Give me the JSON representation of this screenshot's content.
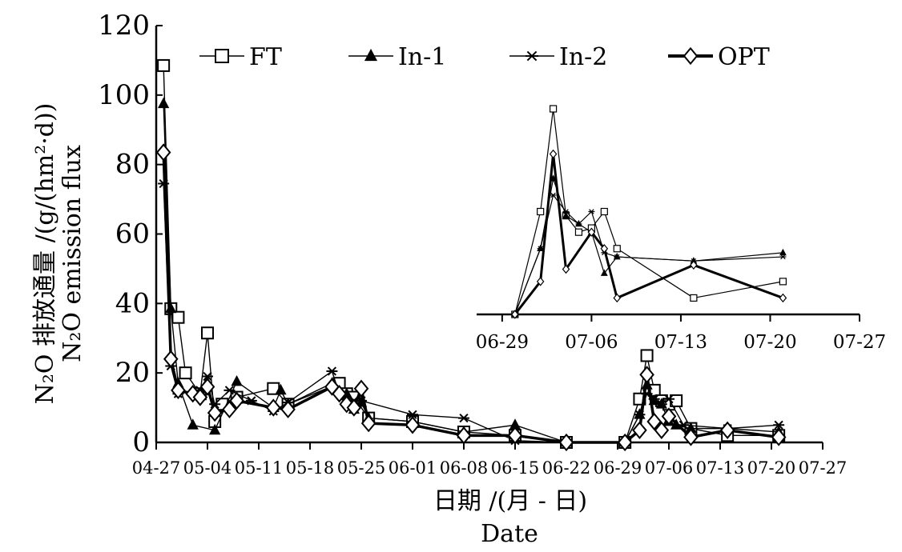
{
  "chart_data": [
    {
      "type": "line",
      "ylabel_cn": "N₂O 排放通量 /(g/(hm²·d))",
      "ylabel_en": "N₂O emission flux",
      "xlabel_cn": "日期 /(月 - 日)",
      "xlabel_en": "Date",
      "ylim": [
        0,
        120
      ],
      "yticks": [
        0,
        20,
        40,
        60,
        80,
        100,
        120
      ],
      "xlim": [
        "04-27",
        "07-27"
      ],
      "xticks": [
        "04-27",
        "05-04",
        "05-11",
        "05-18",
        "05-25",
        "06-01",
        "06-08",
        "06-15",
        "06-22",
        "06-29",
        "07-06",
        "07-13",
        "07-20",
        "07-27"
      ],
      "legend_position": "top",
      "series": [
        {
          "name": "FT",
          "marker": "square",
          "line_weight": "thin",
          "points": [
            [
              "04-28",
              108.5
            ],
            [
              "04-29",
              38.5
            ],
            [
              "04-30",
              36
            ],
            [
              "05-01",
              20
            ],
            [
              "05-03",
              14
            ],
            [
              "05-04",
              31.5
            ],
            [
              "05-05",
              6
            ],
            [
              "05-06",
              11
            ],
            [
              "05-08",
              13
            ],
            [
              "05-13",
              15.5
            ],
            [
              "05-15",
              11
            ],
            [
              "05-22",
              17
            ],
            [
              "05-23",
              14
            ],
            [
              "05-24",
              13
            ],
            [
              "05-26",
              7
            ],
            [
              "06-01",
              6
            ],
            [
              "06-08",
              3
            ],
            [
              "06-15",
              2
            ],
            [
              "06-22",
              0
            ],
            [
              "06-30",
              0
            ],
            [
              "07-02",
              12.5
            ],
            [
              "07-03",
              25
            ],
            [
              "07-04",
              15
            ],
            [
              "07-05",
              12
            ],
            [
              "07-06",
              11
            ],
            [
              "07-07",
              12
            ],
            [
              "07-09",
              4
            ],
            [
              "07-14",
              2
            ],
            [
              "07-21",
              2
            ]
          ]
        },
        {
          "name": "In-1",
          "marker": "triangle",
          "line_weight": "thin",
          "points": [
            [
              "04-28",
              97.5
            ],
            [
              "04-29",
              38.5
            ],
            [
              "04-30",
              17
            ],
            [
              "05-02",
              5
            ],
            [
              "05-05",
              3.5
            ],
            [
              "05-08",
              17.5
            ],
            [
              "05-13",
              10
            ],
            [
              "05-14",
              15
            ],
            [
              "05-15",
              11
            ],
            [
              "05-21",
              17
            ],
            [
              "05-23",
              14
            ],
            [
              "05-24",
              9.5
            ],
            [
              "05-25",
              11.5
            ],
            [
              "05-26",
              7
            ],
            [
              "06-01",
              6
            ],
            [
              "06-08",
              3
            ],
            [
              "06-15",
              5
            ],
            [
              "06-22",
              0
            ],
            [
              "06-30",
              0
            ],
            [
              "07-02",
              8
            ],
            [
              "07-03",
              16.5
            ],
            [
              "07-04",
              12
            ],
            [
              "07-05",
              11
            ],
            [
              "07-06",
              6
            ],
            [
              "07-07",
              5
            ],
            [
              "07-09",
              4
            ],
            [
              "07-14",
              4
            ],
            [
              "07-21",
              3
            ]
          ]
        },
        {
          "name": "In-2",
          "marker": "star",
          "line_weight": "thin",
          "points": [
            [
              "04-28",
              74.5
            ],
            [
              "04-29",
              22
            ],
            [
              "04-30",
              14
            ],
            [
              "05-03",
              15
            ],
            [
              "05-04",
              19
            ],
            [
              "05-05",
              11
            ],
            [
              "05-07",
              15
            ],
            [
              "05-10",
              12
            ],
            [
              "05-13",
              9
            ],
            [
              "05-15",
              11.5
            ],
            [
              "05-21",
              20.5
            ],
            [
              "05-22",
              14
            ],
            [
              "05-24",
              12
            ],
            [
              "05-25",
              12
            ],
            [
              "06-01",
              8
            ],
            [
              "06-08",
              7
            ],
            [
              "06-15",
              0.5
            ],
            [
              "06-22",
              0
            ],
            [
              "06-30",
              0
            ],
            [
              "07-02",
              8
            ],
            [
              "07-03",
              14
            ],
            [
              "07-04",
              12.5
            ],
            [
              "07-05",
              11
            ],
            [
              "07-06",
              12.5
            ],
            [
              "07-08",
              5
            ],
            [
              "07-14",
              4
            ],
            [
              "07-21",
              5
            ]
          ]
        },
        {
          "name": "OPT",
          "marker": "diamond",
          "line_weight": "bold",
          "points": [
            [
              "04-28",
              83.5
            ],
            [
              "04-29",
              24
            ],
            [
              "04-30",
              15
            ],
            [
              "05-02",
              14
            ],
            [
              "05-03",
              13
            ],
            [
              "05-04",
              16
            ],
            [
              "05-05",
              8.5
            ],
            [
              "05-07",
              9.5
            ],
            [
              "05-08",
              12
            ],
            [
              "05-13",
              10
            ],
            [
              "05-15",
              9.5
            ],
            [
              "05-21",
              16
            ],
            [
              "05-22",
              14
            ],
            [
              "05-23",
              11
            ],
            [
              "05-24",
              10
            ],
            [
              "05-25",
              15.5
            ],
            [
              "05-26",
              5.5
            ],
            [
              "06-01",
              5
            ],
            [
              "06-08",
              2
            ],
            [
              "06-15",
              2
            ],
            [
              "06-22",
              0
            ],
            [
              "06-30",
              0
            ],
            [
              "07-02",
              3.5
            ],
            [
              "07-03",
              19.5
            ],
            [
              "07-04",
              6
            ],
            [
              "07-05",
              3.5
            ],
            [
              "07-06",
              7.5
            ],
            [
              "07-09",
              1.5
            ],
            [
              "07-14",
              3.5
            ],
            [
              "07-21",
              1.5
            ]
          ]
        }
      ]
    },
    {
      "type": "line",
      "xlim": [
        "06-27",
        "07-27"
      ],
      "ylim": [
        0,
        25
      ],
      "xticks": [
        "06-29",
        "07-06",
        "07-13",
        "07-20",
        "07-27"
      ],
      "yticks": [],
      "series": [
        {
          "name": "FT",
          "points": [
            [
              "06-30",
              0
            ],
            [
              "07-02",
              12.5
            ],
            [
              "07-03",
              25
            ],
            [
              "07-04",
              12
            ],
            [
              "07-05",
              10
            ],
            [
              "07-06",
              10.5
            ],
            [
              "07-07",
              12.5
            ],
            [
              "07-08",
              8
            ],
            [
              "07-14",
              2
            ],
            [
              "07-21",
              4
            ]
          ]
        },
        {
          "name": "In-1",
          "points": [
            [
              "06-30",
              0
            ],
            [
              "07-02",
              8
            ],
            [
              "07-03",
              16.5
            ],
            [
              "07-04",
              12
            ],
            [
              "07-05",
              11
            ],
            [
              "07-06",
              10
            ],
            [
              "07-07",
              5
            ],
            [
              "07-08",
              7
            ],
            [
              "07-14",
              6.5
            ],
            [
              "07-21",
              7.5
            ]
          ]
        },
        {
          "name": "In-2",
          "points": [
            [
              "06-30",
              0
            ],
            [
              "07-02",
              8
            ],
            [
              "07-03",
              14.5
            ],
            [
              "07-04",
              12.5
            ],
            [
              "07-05",
              11
            ],
            [
              "07-06",
              12.5
            ],
            [
              "07-07",
              7.5
            ],
            [
              "07-08",
              7
            ],
            [
              "07-14",
              6.5
            ],
            [
              "07-21",
              7
            ]
          ]
        },
        {
          "name": "OPT",
          "points": [
            [
              "06-30",
              0
            ],
            [
              "07-02",
              4
            ],
            [
              "07-03",
              19.5
            ],
            [
              "07-04",
              5.5
            ],
            [
              "07-06",
              10
            ],
            [
              "07-07",
              8
            ],
            [
              "07-08",
              2
            ],
            [
              "07-14",
              6
            ],
            [
              "07-21",
              2
            ]
          ]
        }
      ]
    }
  ]
}
